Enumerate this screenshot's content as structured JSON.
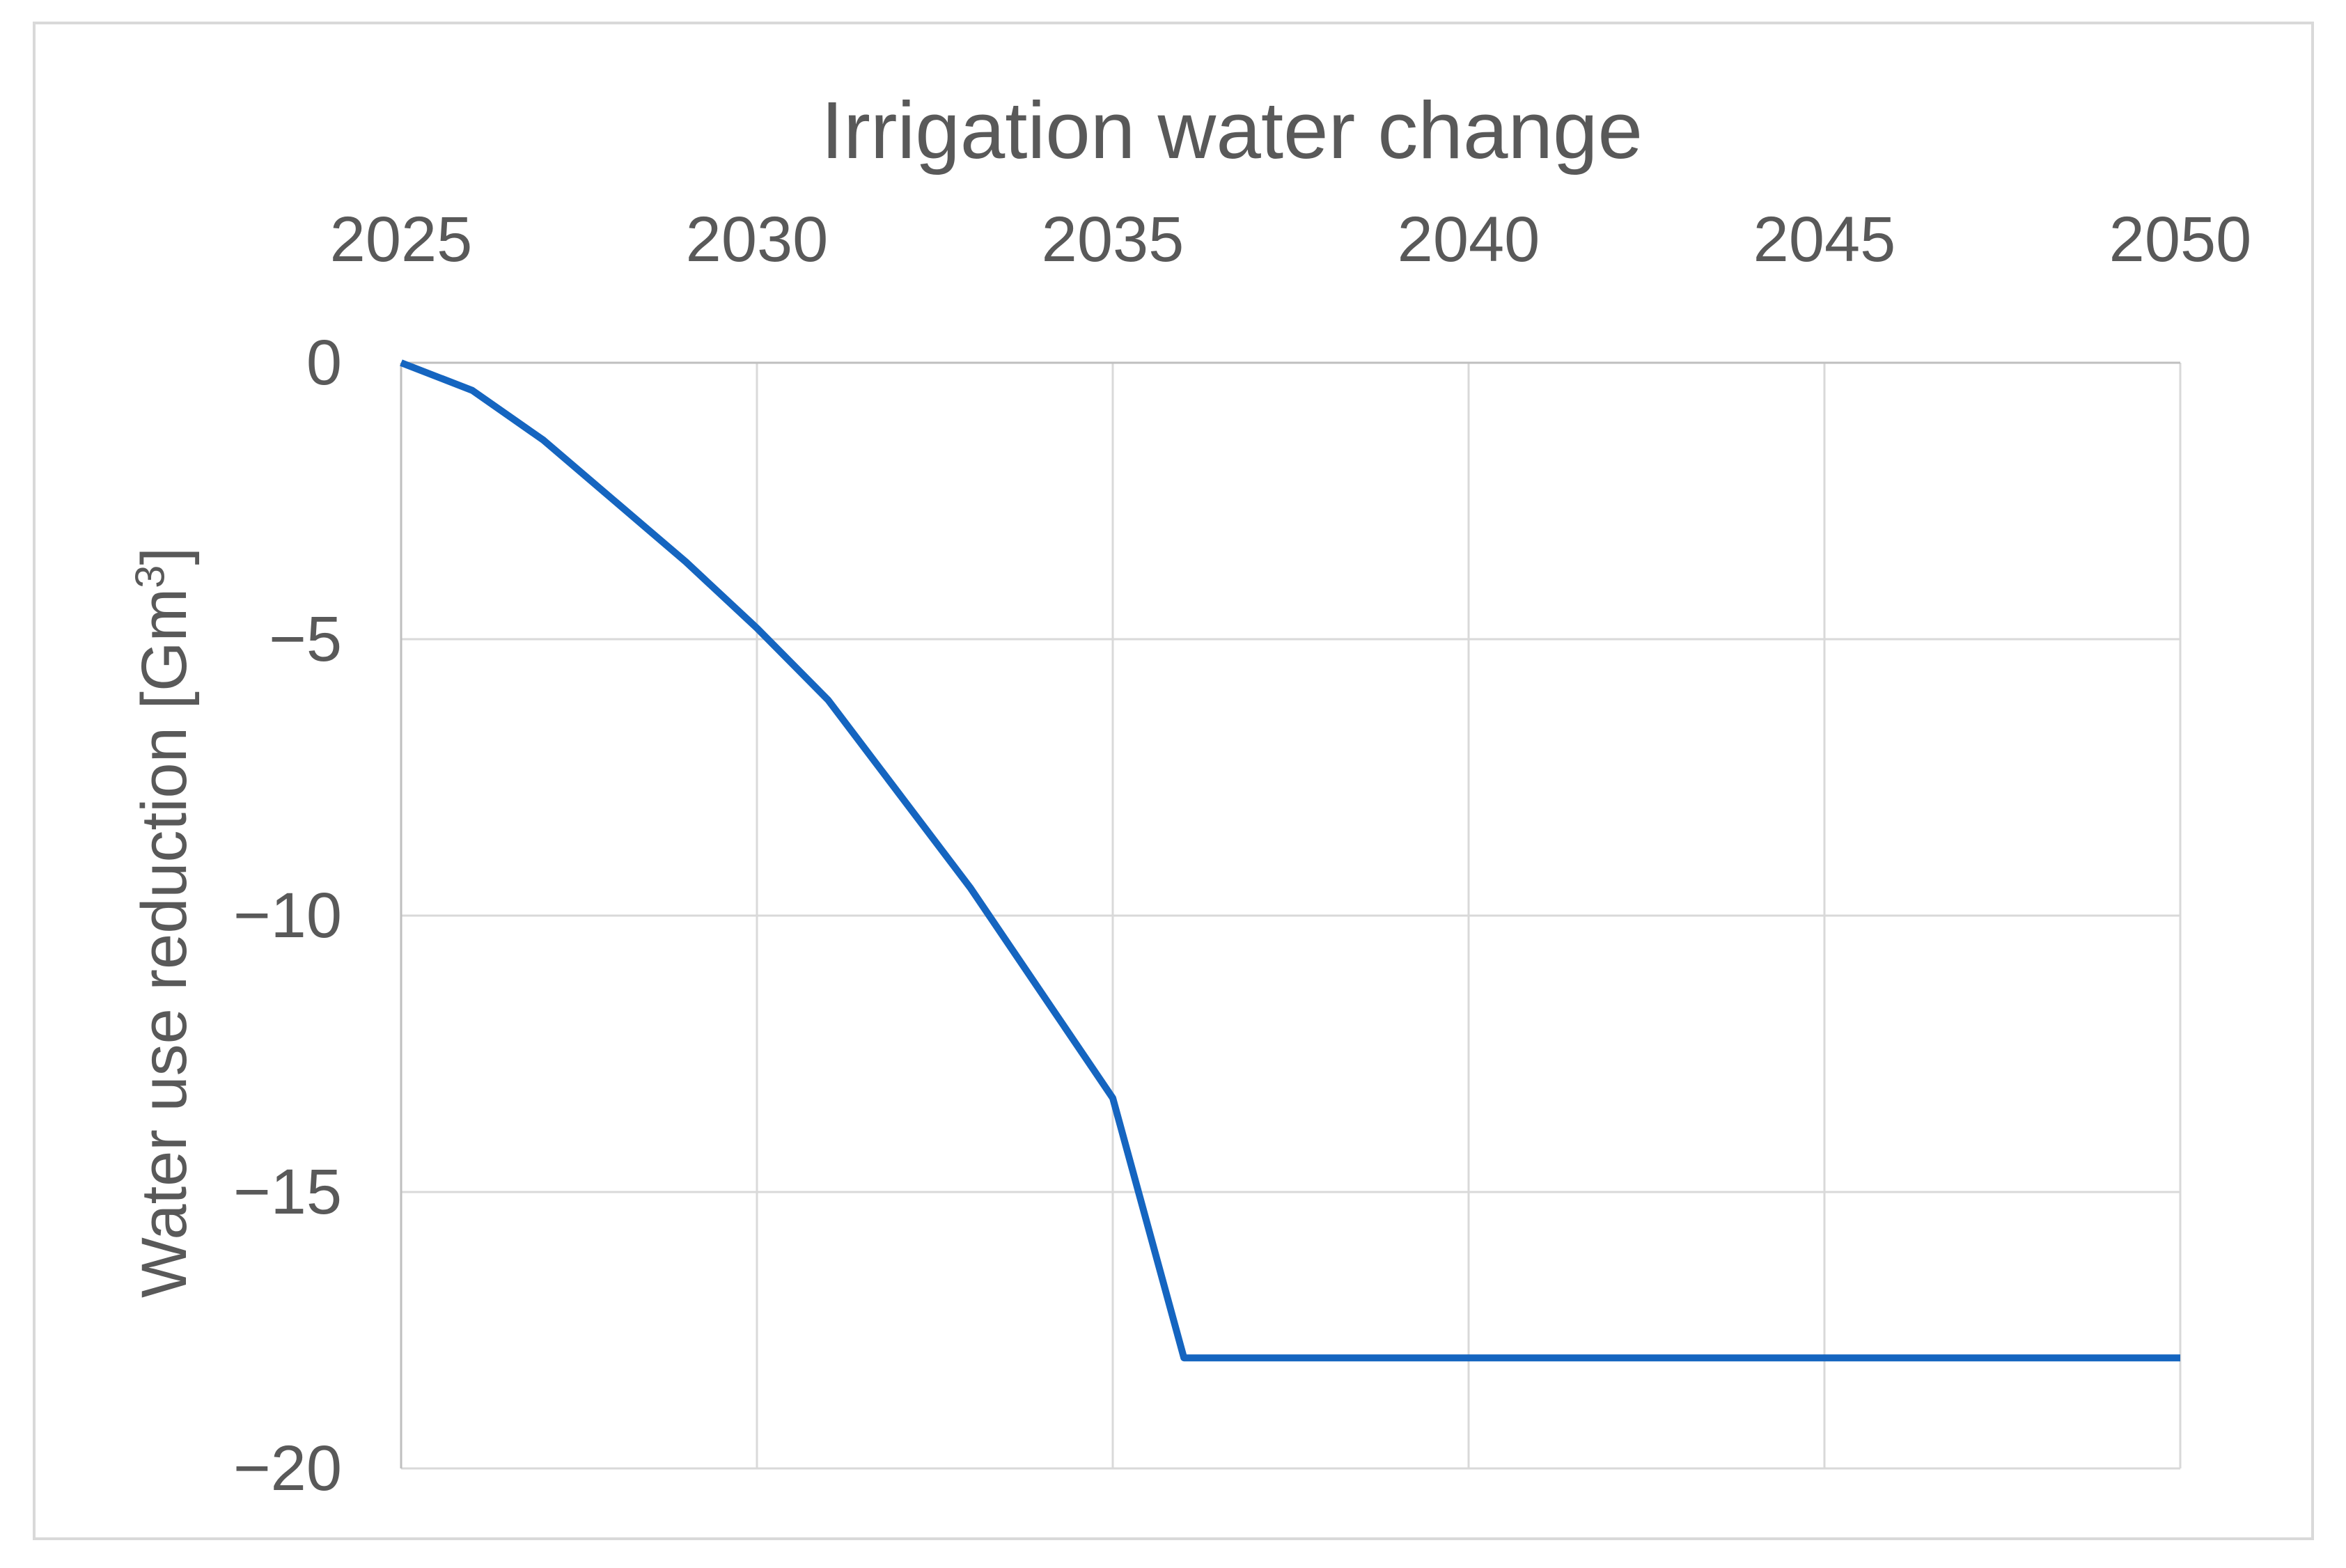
{
  "chart_data": {
    "type": "line",
    "title": "Irrigation water change",
    "xlabel": "",
    "ylabel": "Water use reduction [Gm³]",
    "ylabel_parts": {
      "prefix": "Water use reduction [Gm",
      "superscript": "3",
      "suffix": "]"
    },
    "x": [
      2025,
      2026,
      2027,
      2028,
      2029,
      2030,
      2031,
      2032,
      2033,
      2034,
      2035,
      2036,
      2037,
      2038,
      2039,
      2040,
      2041,
      2042,
      2043,
      2044,
      2045,
      2046,
      2047,
      2048,
      2049,
      2050
    ],
    "values": [
      0,
      -0.5,
      -1.4,
      -2.5,
      -3.6,
      -4.8,
      -6.1,
      -7.8,
      -9.5,
      -11.4,
      -13.3,
      -18,
      -18,
      -18,
      -18,
      -18,
      -18,
      -18,
      -18,
      -18,
      -18,
      -18,
      -18,
      -18,
      -18,
      -18
    ],
    "xlim": [
      2025,
      2050
    ],
    "ylim": [
      -20,
      0
    ],
    "x_ticks": [
      2025,
      2030,
      2035,
      2040,
      2045,
      2050
    ],
    "x_tick_labels": [
      "2025",
      "2030",
      "2035",
      "2040",
      "2045",
      "2050"
    ],
    "y_ticks": [
      0,
      -5,
      -10,
      -15,
      -20
    ],
    "y_tick_labels": [
      "0",
      "−5",
      "−10",
      "−15",
      "−20"
    ],
    "x_axis_position": "top",
    "grid": true,
    "legend": false
  },
  "style": {
    "line_color": "#1565C0",
    "gridline_color": "#D9D9D9",
    "axis_line_color": "#BFBFBF",
    "text_color": "#595959",
    "border_color": "#D9D9D9",
    "background": "#FFFFFF"
  }
}
